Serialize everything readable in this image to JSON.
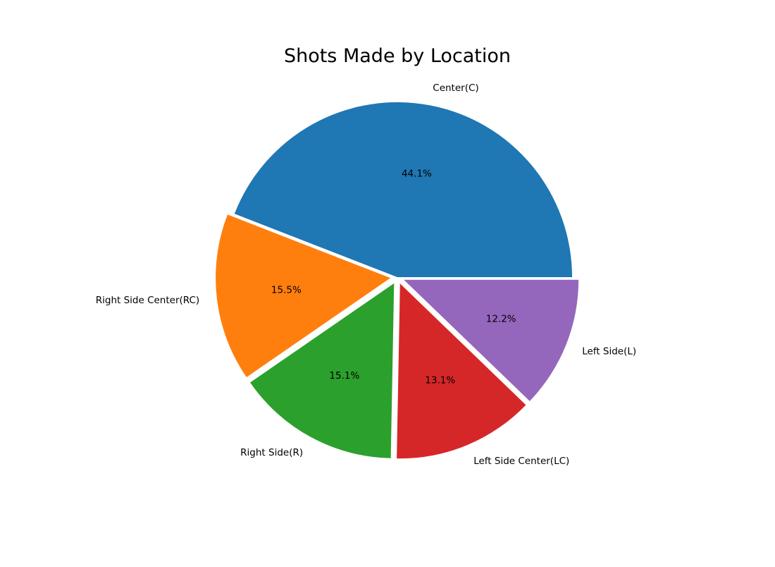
{
  "chart_data": {
    "type": "pie",
    "title": "Shots Made by Location",
    "start_angle_deg": 0,
    "direction": "counterclockwise",
    "slices": [
      {
        "label": "Center(C)",
        "percent": 44.1,
        "pct_label": "44.1%",
        "color": "#1f77b4",
        "exploded": false
      },
      {
        "label": "Right Side Center(RC)",
        "percent": 15.5,
        "pct_label": "15.5%",
        "color": "#ff7f0e",
        "exploded": true
      },
      {
        "label": "Right Side(R)",
        "percent": 15.1,
        "pct_label": "15.1%",
        "color": "#2ca02c",
        "exploded": true
      },
      {
        "label": "Left Side Center(LC)",
        "percent": 13.1,
        "pct_label": "13.1%",
        "color": "#d62728",
        "exploded": true
      },
      {
        "label": "Left Side(L)",
        "percent": 12.2,
        "pct_label": "12.2%",
        "color": "#9467bd",
        "exploded": true
      }
    ]
  }
}
